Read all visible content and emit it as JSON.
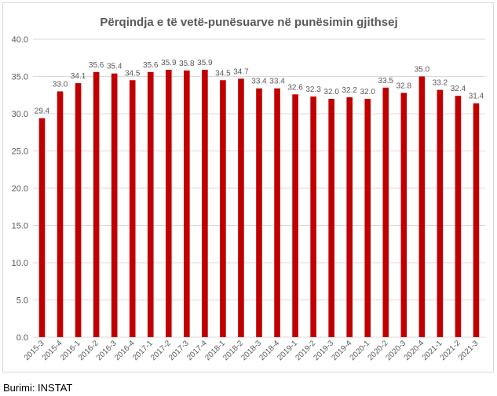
{
  "chart_data": {
    "type": "bar",
    "title": "Përqindja e të vetë-punësuarve në punësimin gjithsej",
    "xlabel": "",
    "ylabel": "",
    "categories": [
      "2015-3",
      "2015-4",
      "2016-1",
      "2016-2",
      "2016-3",
      "2016-4",
      "2017-1",
      "2017-2",
      "2017-3",
      "2017-4",
      "2018-1",
      "2018-2",
      "2018-3",
      "2018-4",
      "2019-1",
      "2019-2",
      "2019-3",
      "2019-4",
      "2020-1",
      "2020-2",
      "2020-3",
      "2020-4",
      "2021-1",
      "2021-2",
      "2021-3"
    ],
    "values": [
      29.4,
      33.0,
      34.1,
      35.6,
      35.4,
      34.5,
      35.6,
      35.9,
      35.8,
      35.9,
      34.5,
      34.7,
      33.4,
      33.4,
      32.6,
      32.3,
      32.0,
      32.2,
      32.0,
      33.5,
      32.8,
      35.0,
      33.2,
      32.4,
      31.4
    ],
    "value_labels": [
      "29.4",
      "33.0",
      "34.1",
      "35.6",
      "35.4",
      "34.5",
      "35.6",
      "35.9",
      "35.8",
      "35.9",
      "34.5",
      "34.7",
      "33.4",
      "33.4",
      "32.6",
      "32.3",
      "32.0",
      "32.2",
      "32.0",
      "33.5",
      "32.8",
      "35.0",
      "33.2",
      "32.4",
      "31.4"
    ],
    "ylim": [
      0,
      40
    ],
    "yticks": [
      "0.0",
      "5.0",
      "10.0",
      "15.0",
      "20.0",
      "25.0",
      "30.0",
      "35.0",
      "40.0"
    ],
    "grid": true,
    "legend": "none",
    "colors": {
      "bar": "#c00000",
      "grid": "#d9d9d9",
      "text": "#595959",
      "title": "#595959"
    }
  },
  "source": "Burimi: INSTAT"
}
